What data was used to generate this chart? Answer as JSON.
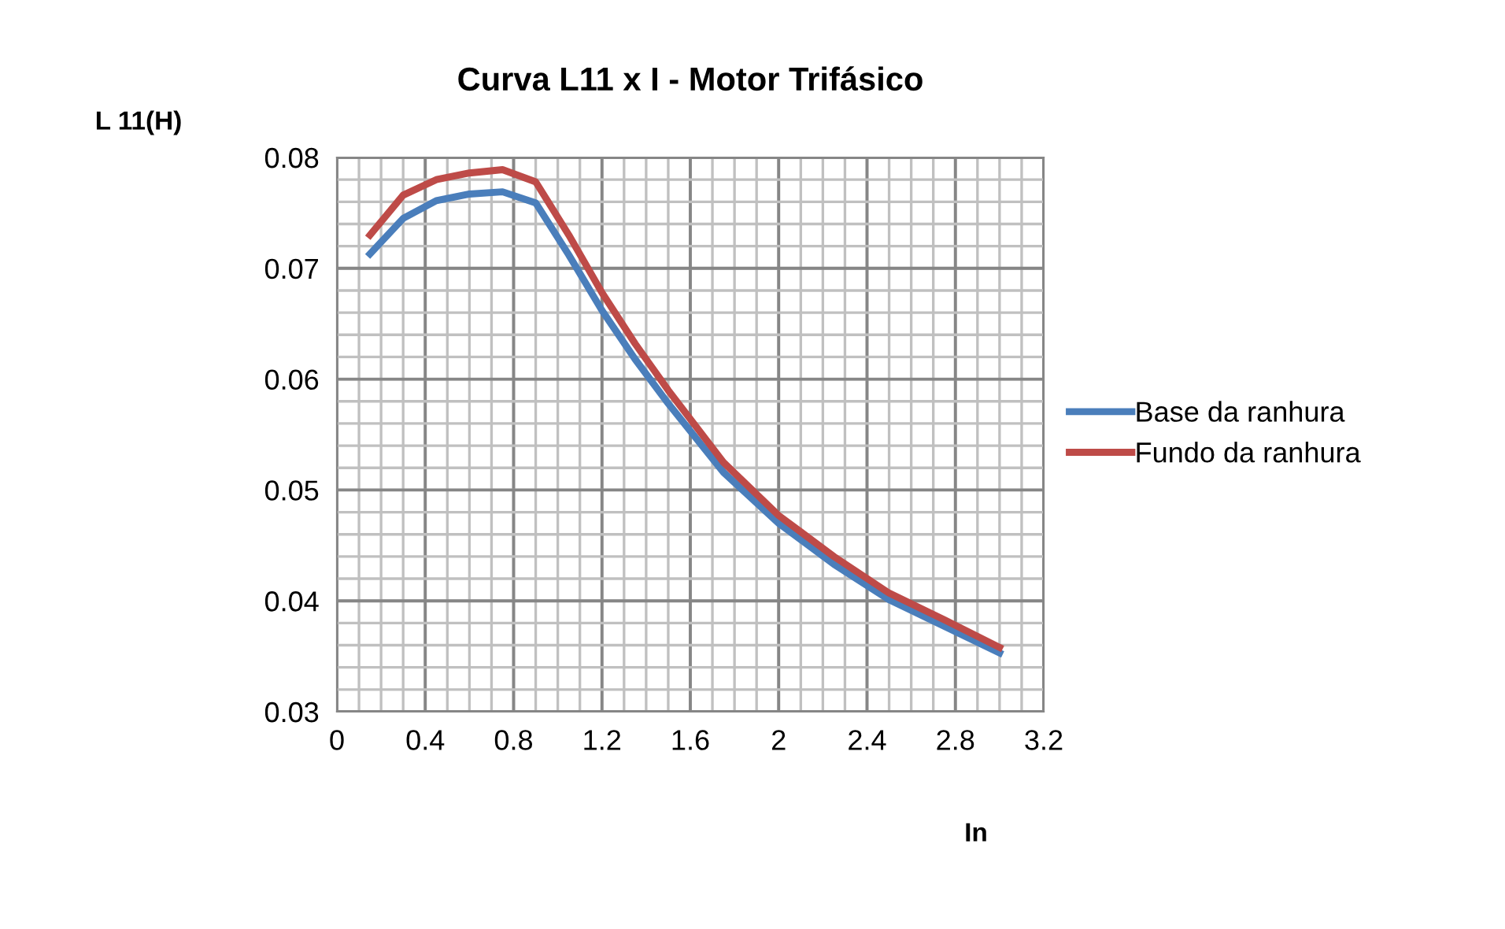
{
  "chart_data": {
    "type": "line",
    "title": "Curva L11 x I - Motor Trifásico",
    "xlabel": "In",
    "ylabel": "L 11(H)",
    "x": [
      0.15,
      0.3,
      0.45,
      0.6,
      0.75,
      0.9,
      1.05,
      1.2,
      1.35,
      1.5,
      1.75,
      2.0,
      2.25,
      2.5,
      2.75,
      3.0
    ],
    "series": [
      {
        "name": "Base da ranhura",
        "color": "#4a7ebb",
        "values": [
          0.0713,
          0.0745,
          0.0761,
          0.0767,
          0.0769,
          0.0759,
          0.0712,
          0.0662,
          0.0618,
          0.0578,
          0.0516,
          0.047,
          0.0433,
          0.0401,
          0.0377,
          0.0353
        ]
      },
      {
        "name": "Fundo da ranhura",
        "color": "#be4b48",
        "values": [
          0.073,
          0.0766,
          0.078,
          0.0786,
          0.0789,
          0.0778,
          0.073,
          0.0678,
          0.0632,
          0.059,
          0.0525,
          0.0477,
          0.044,
          0.0407,
          0.0383,
          0.0358
        ]
      }
    ],
    "xlim": [
      0,
      3.2
    ],
    "xticks": [
      0,
      0.4,
      0.8,
      1.2,
      1.6,
      2,
      2.4,
      2.8,
      3.2
    ],
    "ylim": [
      0.03,
      0.08
    ],
    "yticks": [
      0.03,
      0.04,
      0.05,
      0.06,
      0.07,
      0.08
    ],
    "grid": true,
    "legend": "right",
    "marker": "none",
    "line_style": "solid"
  }
}
